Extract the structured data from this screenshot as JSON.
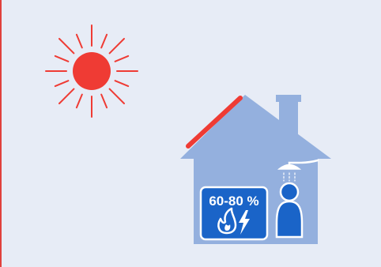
{
  "illustration": {
    "energy_share_label": "60-80 %",
    "energy_icons": [
      "flame-icon",
      "lightning-icon"
    ],
    "person_icon": "person-icon",
    "shower_icon": "shower-icon"
  },
  "colors": {
    "background": "#e7ecf6",
    "sun": "#ef3b34",
    "house": "#94b0de",
    "badge": "#1a64c8",
    "person": "#1a64c8",
    "accent_line": "#e0413d"
  }
}
